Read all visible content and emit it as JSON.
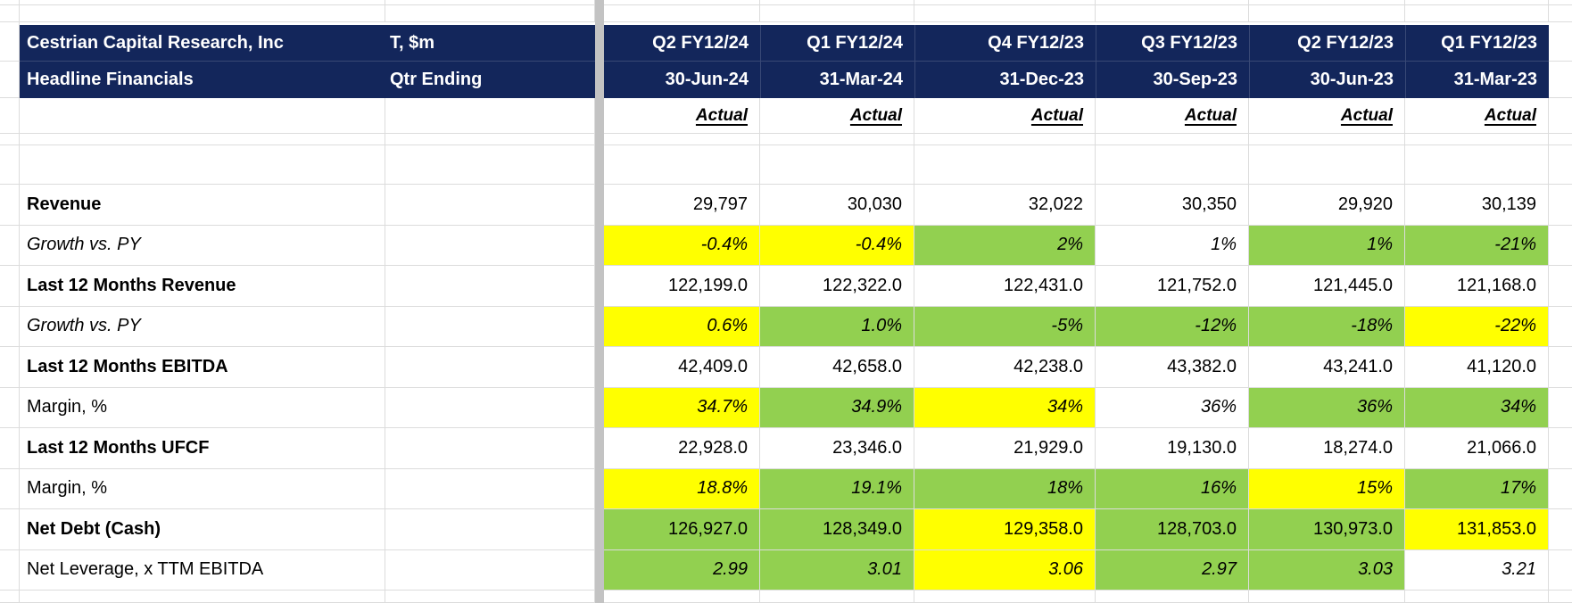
{
  "sheet": {
    "company": "Cestrian Capital Research, Inc",
    "report": "Headline Financials",
    "unit": "T, $m",
    "qtr_ending_label": "Qtr Ending"
  },
  "columns": [
    {
      "quarter": "Q2 FY12/24",
      "date": "30-Jun-24",
      "status": "Actual"
    },
    {
      "quarter": "Q1 FY12/24",
      "date": "31-Mar-24",
      "status": "Actual"
    },
    {
      "quarter": "Q4 FY12/23",
      "date": "31-Dec-23",
      "status": "Actual"
    },
    {
      "quarter": "Q3 FY12/23",
      "date": "30-Sep-23",
      "status": "Actual"
    },
    {
      "quarter": "Q2 FY12/23",
      "date": "30-Jun-23",
      "status": "Actual"
    },
    {
      "quarter": "Q1 FY12/23",
      "date": "31-Mar-23",
      "status": "Actual"
    }
  ],
  "rows": [
    {
      "label": "Revenue",
      "label_style": "bold",
      "value_style": "plain",
      "cells": [
        {
          "v": "29,797",
          "bg": "none"
        },
        {
          "v": "30,030",
          "bg": "none"
        },
        {
          "v": "32,022",
          "bg": "none"
        },
        {
          "v": "30,350",
          "bg": "none"
        },
        {
          "v": "29,920",
          "bg": "none"
        },
        {
          "v": "30,139",
          "bg": "none"
        }
      ]
    },
    {
      "label": "Growth vs. PY",
      "label_style": "italic",
      "value_style": "italic",
      "cells": [
        {
          "v": "-0.4%",
          "bg": "yellow"
        },
        {
          "v": "-0.4%",
          "bg": "yellow"
        },
        {
          "v": "2%",
          "bg": "green"
        },
        {
          "v": "1%",
          "bg": "none"
        },
        {
          "v": "1%",
          "bg": "green"
        },
        {
          "v": "-21%",
          "bg": "green"
        }
      ]
    },
    {
      "label": "Last 12 Months Revenue",
      "label_style": "bold",
      "value_style": "plain",
      "cells": [
        {
          "v": "122,199.0",
          "bg": "none"
        },
        {
          "v": "122,322.0",
          "bg": "none"
        },
        {
          "v": "122,431.0",
          "bg": "none"
        },
        {
          "v": "121,752.0",
          "bg": "none"
        },
        {
          "v": "121,445.0",
          "bg": "none"
        },
        {
          "v": "121,168.0",
          "bg": "none"
        }
      ]
    },
    {
      "label": "Growth vs. PY",
      "label_style": "italic",
      "value_style": "italic",
      "cells": [
        {
          "v": "0.6%",
          "bg": "yellow"
        },
        {
          "v": "1.0%",
          "bg": "green"
        },
        {
          "v": "-5%",
          "bg": "green"
        },
        {
          "v": "-12%",
          "bg": "green"
        },
        {
          "v": "-18%",
          "bg": "green"
        },
        {
          "v": "-22%",
          "bg": "yellow"
        }
      ]
    },
    {
      "label": "Last 12 Months EBITDA",
      "label_style": "bold",
      "value_style": "plain",
      "cells": [
        {
          "v": "42,409.0",
          "bg": "none"
        },
        {
          "v": "42,658.0",
          "bg": "none"
        },
        {
          "v": "42,238.0",
          "bg": "none"
        },
        {
          "v": "43,382.0",
          "bg": "none"
        },
        {
          "v": "43,241.0",
          "bg": "none"
        },
        {
          "v": "41,120.0",
          "bg": "none"
        }
      ]
    },
    {
      "label": "Margin, %",
      "label_style": "plain",
      "value_style": "italic",
      "cells": [
        {
          "v": "34.7%",
          "bg": "yellow"
        },
        {
          "v": "34.9%",
          "bg": "green"
        },
        {
          "v": "34%",
          "bg": "yellow"
        },
        {
          "v": "36%",
          "bg": "none"
        },
        {
          "v": "36%",
          "bg": "green"
        },
        {
          "v": "34%",
          "bg": "green"
        }
      ]
    },
    {
      "label": "Last 12 Months UFCF",
      "label_style": "bold",
      "value_style": "plain",
      "cells": [
        {
          "v": "22,928.0",
          "bg": "none"
        },
        {
          "v": "23,346.0",
          "bg": "none"
        },
        {
          "v": "21,929.0",
          "bg": "none"
        },
        {
          "v": "19,130.0",
          "bg": "none"
        },
        {
          "v": "18,274.0",
          "bg": "none"
        },
        {
          "v": "21,066.0",
          "bg": "none"
        }
      ]
    },
    {
      "label": "Margin, %",
      "label_style": "plain",
      "value_style": "italic",
      "cells": [
        {
          "v": "18.8%",
          "bg": "yellow"
        },
        {
          "v": "19.1%",
          "bg": "green"
        },
        {
          "v": "18%",
          "bg": "green"
        },
        {
          "v": "16%",
          "bg": "green"
        },
        {
          "v": "15%",
          "bg": "yellow"
        },
        {
          "v": "17%",
          "bg": "green"
        }
      ]
    },
    {
      "label": "Net Debt (Cash)",
      "label_style": "bold",
      "value_style": "plain",
      "cells": [
        {
          "v": "126,927.0",
          "bg": "green"
        },
        {
          "v": "128,349.0",
          "bg": "green"
        },
        {
          "v": "129,358.0",
          "bg": "yellow"
        },
        {
          "v": "128,703.0",
          "bg": "green"
        },
        {
          "v": "130,973.0",
          "bg": "green"
        },
        {
          "v": "131,853.0",
          "bg": "yellow"
        }
      ]
    },
    {
      "label": "Net Leverage, x TTM EBITDA",
      "label_style": "plain",
      "value_style": "italic",
      "cells": [
        {
          "v": "2.99",
          "bg": "green"
        },
        {
          "v": "3.01",
          "bg": "green"
        },
        {
          "v": "3.06",
          "bg": "yellow"
        },
        {
          "v": "2.97",
          "bg": "green"
        },
        {
          "v": "3.03",
          "bg": "green"
        },
        {
          "v": "3.21",
          "bg": "none"
        }
      ]
    }
  ],
  "colors": {
    "header_navy": "#13265B",
    "header_text": "#FFFFFF",
    "highlight_yellow": "#FFFF00",
    "highlight_green": "#92D050",
    "gridline": "#DCDCDC",
    "pane_divider": "#C3C3C3",
    "body_text": "#000000"
  }
}
